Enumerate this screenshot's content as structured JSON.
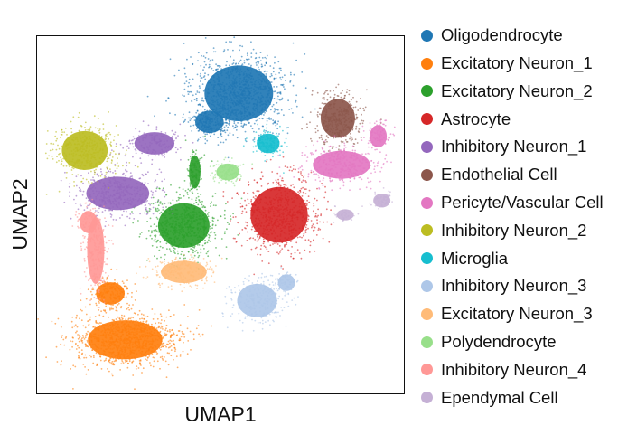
{
  "chart_data": {
    "type": "scatter",
    "title": "",
    "xlabel": "UMAP1",
    "ylabel": "UMAP2",
    "xlim": [
      0,
      100
    ],
    "ylim": [
      0,
      100
    ],
    "grid": false,
    "ticks": false,
    "legend_position": "right",
    "series": [
      {
        "name": "Oligodendrocyte",
        "color": "#1f77b4",
        "clusters": [
          {
            "cx": 55,
            "cy": 84,
            "rx": 12,
            "ry": 10,
            "n": 1100
          },
          {
            "cx": 47,
            "cy": 76,
            "rx": 5,
            "ry": 4,
            "n": 200
          }
        ]
      },
      {
        "name": "Excitatory Neuron_1",
        "color": "#ff7f0e",
        "clusters": [
          {
            "cx": 24,
            "cy": 15,
            "rx": 13,
            "ry": 7,
            "n": 1100
          },
          {
            "cx": 20,
            "cy": 28,
            "rx": 5,
            "ry": 4,
            "n": 180
          }
        ]
      },
      {
        "name": "Excitatory Neuron_2",
        "color": "#2ca02c",
        "clusters": [
          {
            "cx": 40,
            "cy": 47,
            "rx": 9,
            "ry": 8,
            "n": 650
          },
          {
            "cx": 43,
            "cy": 62,
            "rx": 2,
            "ry": 6,
            "n": 110
          }
        ]
      },
      {
        "name": "Astrocyte",
        "color": "#d62728",
        "clusters": [
          {
            "cx": 66,
            "cy": 50,
            "rx": 10,
            "ry": 10,
            "n": 700
          }
        ]
      },
      {
        "name": "Inhibitory Neuron_1",
        "color": "#9467bd",
        "clusters": [
          {
            "cx": 22,
            "cy": 56,
            "rx": 11,
            "ry": 6,
            "n": 450
          },
          {
            "cx": 32,
            "cy": 70,
            "rx": 7,
            "ry": 4,
            "n": 150
          }
        ]
      },
      {
        "name": "Endothelial Cell",
        "color": "#8c564b",
        "clusters": [
          {
            "cx": 82,
            "cy": 77,
            "rx": 6,
            "ry": 7,
            "n": 380
          }
        ]
      },
      {
        "name": "Pericyte/Vascular Cell",
        "color": "#e377c2",
        "clusters": [
          {
            "cx": 83,
            "cy": 64,
            "rx": 10,
            "ry": 5,
            "n": 350
          },
          {
            "cx": 93,
            "cy": 72,
            "rx": 3,
            "ry": 4,
            "n": 80
          }
        ]
      },
      {
        "name": "Inhibitory Neuron_2",
        "color": "#bcbd22",
        "clusters": [
          {
            "cx": 13,
            "cy": 68,
            "rx": 8,
            "ry": 7,
            "n": 400
          }
        ]
      },
      {
        "name": "Microglia",
        "color": "#17becf",
        "clusters": [
          {
            "cx": 63,
            "cy": 70,
            "rx": 4,
            "ry": 3.5,
            "n": 150
          }
        ]
      },
      {
        "name": "Inhibitory Neuron_3",
        "color": "#aec7e8",
        "clusters": [
          {
            "cx": 60,
            "cy": 26,
            "rx": 7,
            "ry": 6,
            "n": 250
          },
          {
            "cx": 68,
            "cy": 31,
            "rx": 3,
            "ry": 3,
            "n": 60
          }
        ]
      },
      {
        "name": "Excitatory Neuron_3",
        "color": "#ffbb78",
        "clusters": [
          {
            "cx": 40,
            "cy": 34,
            "rx": 8,
            "ry": 4,
            "n": 220
          }
        ]
      },
      {
        "name": "Polydendrocyte",
        "color": "#98df8a",
        "clusters": [
          {
            "cx": 52,
            "cy": 62,
            "rx": 4,
            "ry": 3,
            "n": 110
          }
        ]
      },
      {
        "name": "Inhibitory Neuron_4",
        "color": "#ff9896",
        "clusters": [
          {
            "cx": 16,
            "cy": 40,
            "rx": 3,
            "ry": 12,
            "n": 230
          },
          {
            "cx": 14,
            "cy": 48,
            "rx": 3,
            "ry": 4,
            "n": 60
          }
        ]
      },
      {
        "name": "Ependymal Cell",
        "color": "#c5b0d5",
        "clusters": [
          {
            "cx": 94,
            "cy": 54,
            "rx": 3,
            "ry": 2.5,
            "n": 60
          },
          {
            "cx": 84,
            "cy": 50,
            "rx": 3,
            "ry": 2,
            "n": 40
          }
        ]
      }
    ]
  }
}
